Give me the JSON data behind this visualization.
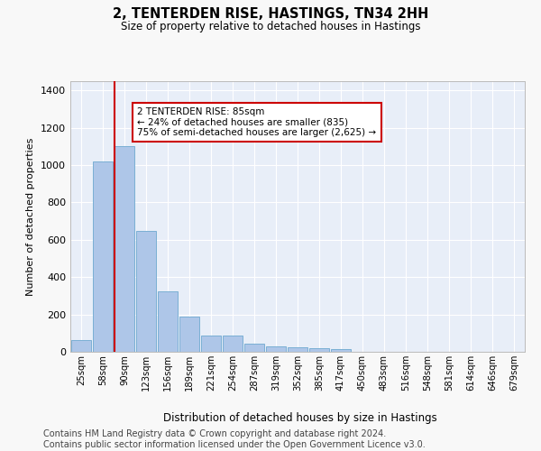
{
  "title": "2, TENTERDEN RISE, HASTINGS, TN34 2HH",
  "subtitle": "Size of property relative to detached houses in Hastings",
  "xlabel": "Distribution of detached houses by size in Hastings",
  "ylabel": "Number of detached properties",
  "bar_color": "#aec6e8",
  "bar_edge_color": "#7aafd4",
  "background_color": "#e8eef8",
  "grid_color": "#ffffff",
  "vline_color": "#cc0000",
  "vline_x_idx": 2,
  "annotation_text": "2 TENTERDEN RISE: 85sqm\n← 24% of detached houses are smaller (835)\n75% of semi-detached houses are larger (2,625) →",
  "annotation_box_color": "#cc0000",
  "categories": [
    "25sqm",
    "58sqm",
    "90sqm",
    "123sqm",
    "156sqm",
    "189sqm",
    "221sqm",
    "254sqm",
    "287sqm",
    "319sqm",
    "352sqm",
    "385sqm",
    "417sqm",
    "450sqm",
    "483sqm",
    "516sqm",
    "548sqm",
    "581sqm",
    "614sqm",
    "646sqm",
    "679sqm"
  ],
  "values": [
    65,
    1020,
    1100,
    650,
    325,
    188,
    88,
    88,
    45,
    30,
    25,
    20,
    15,
    0,
    0,
    0,
    0,
    0,
    0,
    0,
    0
  ],
  "ylim": [
    0,
    1450
  ],
  "yticks": [
    0,
    200,
    400,
    600,
    800,
    1000,
    1200,
    1400
  ],
  "footer": "Contains HM Land Registry data © Crown copyright and database right 2024.\nContains public sector information licensed under the Open Government Licence v3.0.",
  "footer_fontsize": 7.0,
  "title_fontsize": 10.5,
  "subtitle_fontsize": 8.5,
  "ylabel_fontsize": 8.0,
  "xlabel_fontsize": 8.5
}
